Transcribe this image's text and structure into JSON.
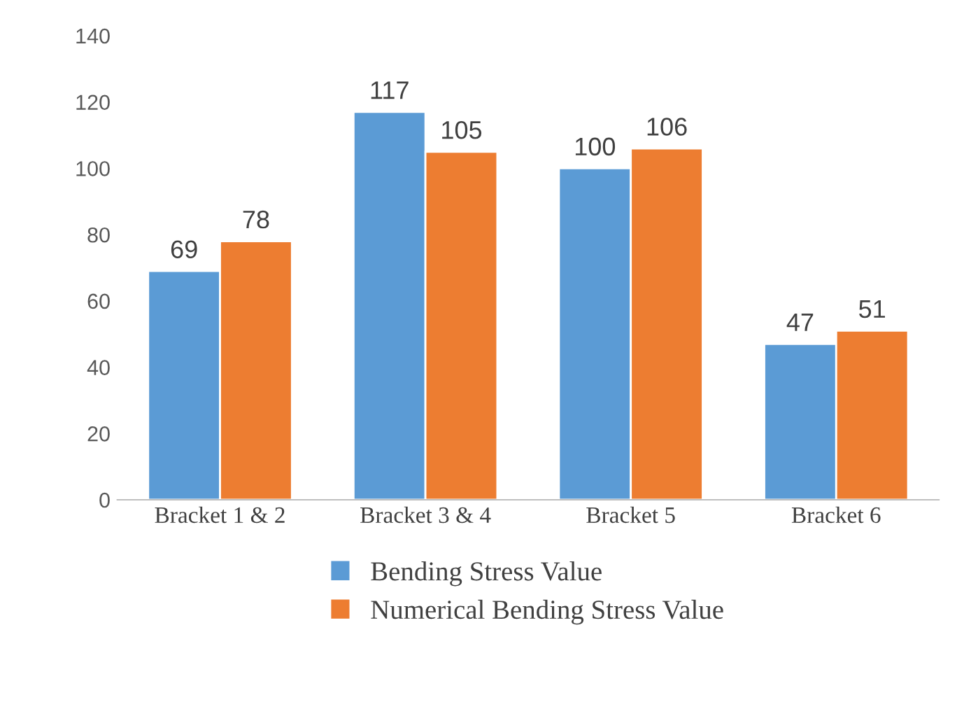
{
  "chart_data": {
    "type": "bar",
    "categories": [
      "Bracket 1 & 2",
      "Bracket 3 & 4",
      "Bracket 5",
      "Bracket 6"
    ],
    "series": [
      {
        "name": "Bending Stress Value",
        "color": "#5b9bd5",
        "values": [
          69,
          117,
          100,
          47
        ]
      },
      {
        "name": "Numerical Bending Stress Value",
        "color": "#ed7d31",
        "values": [
          78,
          105,
          106,
          51
        ]
      }
    ],
    "ylim": [
      0,
      140
    ],
    "yticks": [
      0,
      20,
      40,
      60,
      80,
      100,
      120,
      140
    ],
    "grid": false,
    "legend": "bottom",
    "data_labels": true
  }
}
